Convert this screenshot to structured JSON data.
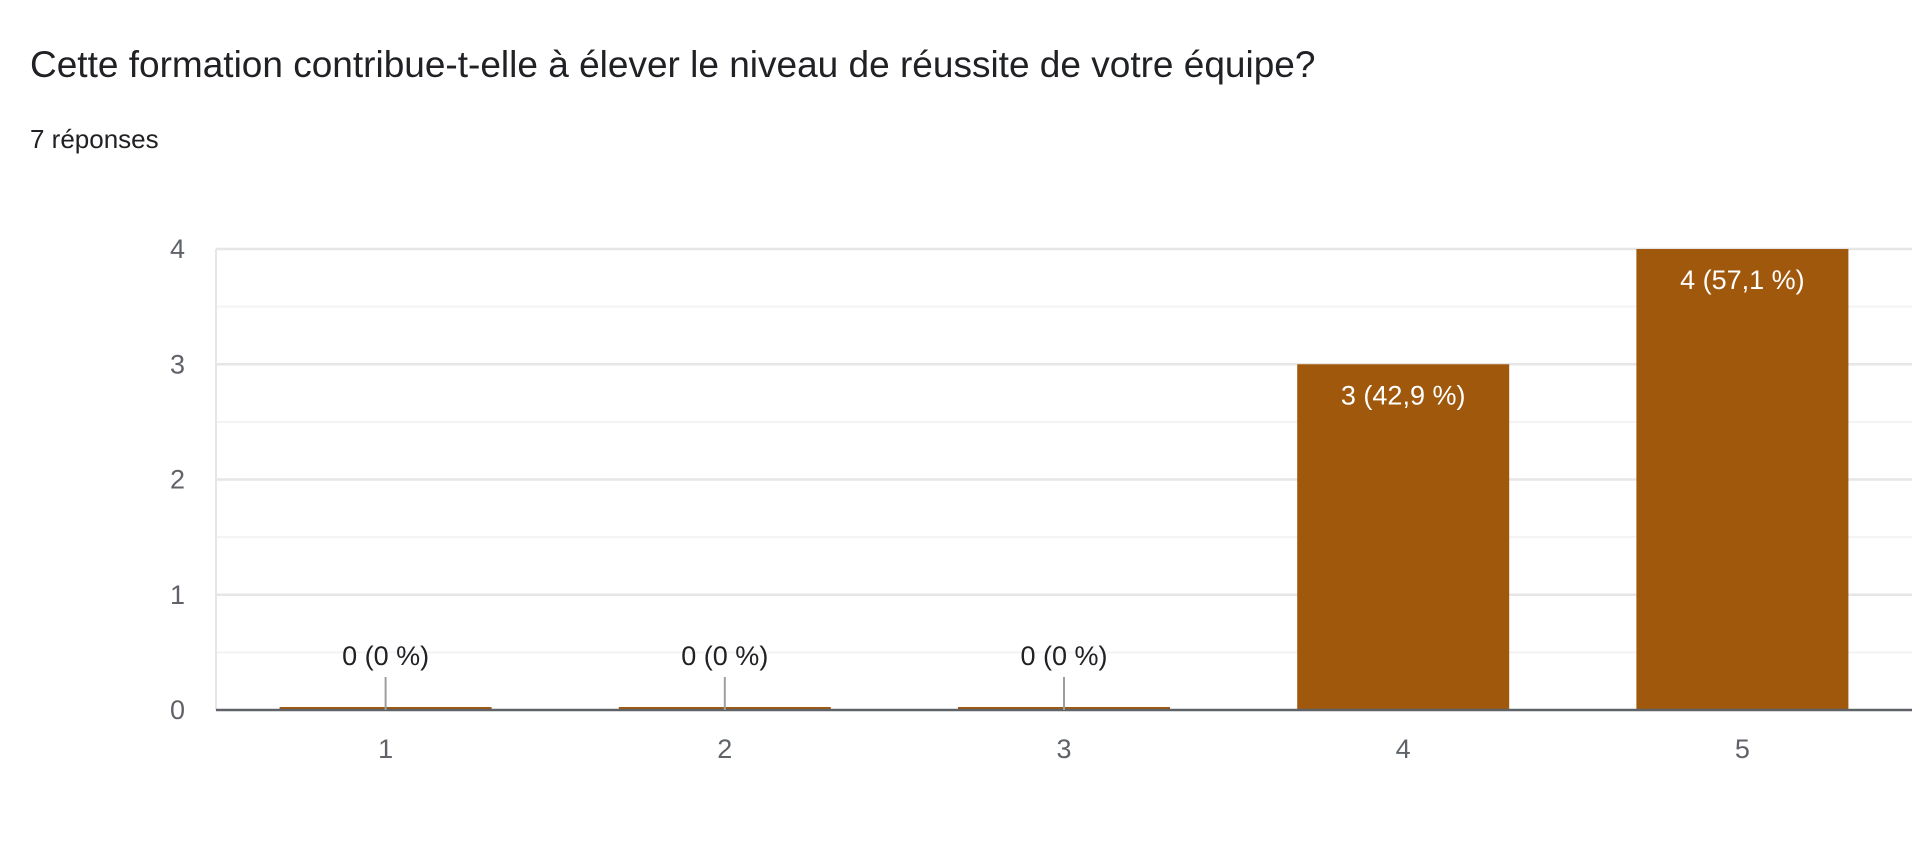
{
  "question": {
    "title": "Cette formation contribue-t-elle à élever le niveau de réussite de votre équipe?",
    "response_count": "7 réponses"
  },
  "colors": {
    "bar": "#a0580c",
    "grid_major": "#e6e6e6",
    "grid_minor": "#f3f3f3",
    "axis": "#5f6368",
    "text": "#202124",
    "bar_label": "#ffffff",
    "zero_label": "#202124"
  },
  "chart_data": {
    "type": "bar",
    "categories": [
      "1",
      "2",
      "3",
      "4",
      "5"
    ],
    "values": [
      0,
      0,
      0,
      3,
      4
    ],
    "data_labels": [
      "0 (0 %)",
      "0 (0 %)",
      "0 (0 %)",
      "3 (42,9 %)",
      "4 (57,1 %)"
    ],
    "ylim": [
      0,
      4
    ],
    "yticks": [
      "0",
      "1",
      "2",
      "3",
      "4"
    ],
    "grid": true
  }
}
